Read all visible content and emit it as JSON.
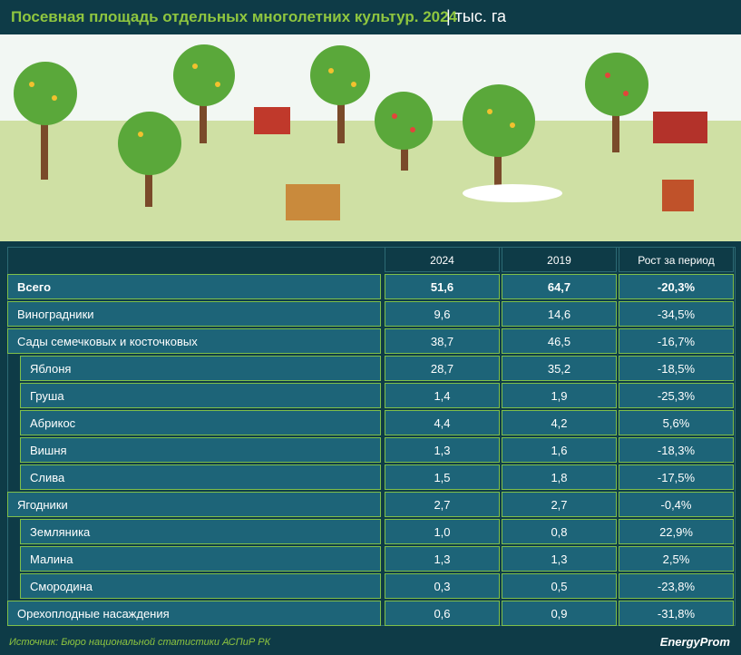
{
  "header": {
    "title": "Посевная площадь отдельных многолетних культур. 2024",
    "unit": "| тыс. га"
  },
  "table": {
    "columns": [
      "2024",
      "2019",
      "Рост за период"
    ],
    "rows": [
      [
        "Всего",
        "51,6",
        "64,7",
        "-20,3%"
      ],
      [
        "Виноградники",
        "9,6",
        "14,6",
        "-34,5%"
      ],
      [
        "Сады семечковых и косточковых",
        "38,7",
        "46,5",
        "-16,7%"
      ],
      [
        "Яблоня",
        "28,7",
        "35,2",
        "-18,5%"
      ],
      [
        "Груша",
        "1,4",
        "1,9",
        "-25,3%"
      ],
      [
        "Абрикос",
        "4,4",
        "4,2",
        "5,6%"
      ],
      [
        "Вишня",
        "1,3",
        "1,6",
        "-18,3%"
      ],
      [
        "Слива",
        "1,5",
        "1,8",
        "-17,5%"
      ],
      [
        "Ягодники",
        "2,7",
        "2,7",
        "-0,4%"
      ],
      [
        "Земляника",
        "1,0",
        "0,8",
        "22,9%"
      ],
      [
        "Малина",
        "1,3",
        "1,3",
        "2,5%"
      ],
      [
        "Смородина",
        "0,3",
        "0,5",
        "-23,8%"
      ],
      [
        "Орехоплодные насаждения",
        "0,6",
        "0,9",
        "-31,8%"
      ]
    ]
  },
  "footer": {
    "source": "Источник: Бюро национальной статистики АСПиР РК",
    "logo": "EnergyProm"
  }
}
